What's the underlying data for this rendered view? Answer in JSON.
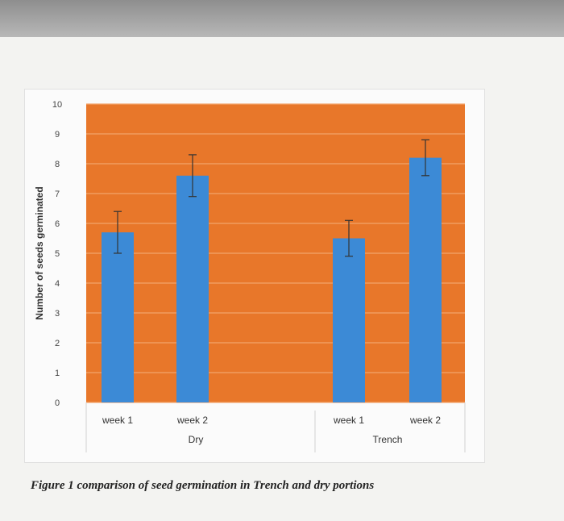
{
  "colors": {
    "plot_background": "#e8772a",
    "bar": "#3c8ad6",
    "gridline": "#f2a46a",
    "error_bar": "#333333"
  },
  "caption": "Figure 1  comparison of seed germination in Trench and dry portions",
  "chart_data": {
    "type": "bar",
    "title": "",
    "xlabel": "",
    "ylabel": "Number of seeds germinated",
    "ylim": [
      0,
      10
    ],
    "yticks": [
      "0",
      "1",
      "2",
      "3",
      "4",
      "5",
      "6",
      "7",
      "8",
      "9",
      "10"
    ],
    "grid": true,
    "groups": [
      {
        "name": "Dry",
        "categories": [
          "week 1",
          "week 2"
        ],
        "values": [
          5.7,
          7.6
        ],
        "error": [
          0.7,
          0.7
        ]
      },
      {
        "name": "Trench",
        "categories": [
          "week 1",
          "week 2"
        ],
        "values": [
          5.5,
          8.2
        ],
        "error": [
          0.6,
          0.6
        ]
      }
    ]
  }
}
